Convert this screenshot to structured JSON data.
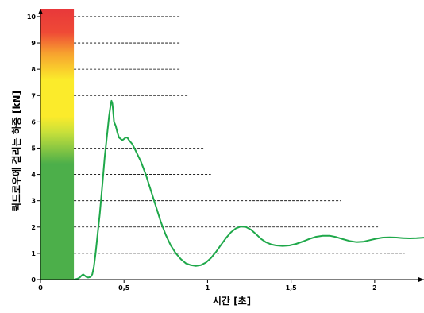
{
  "chart_data": {
    "type": "line",
    "title": "",
    "xlabel": "시간 [초]",
    "ylabel": "퀵드로우에 걸리는 하중 [kN]",
    "xlim": [
      0,
      2.3
    ],
    "ylim": [
      0,
      10.3
    ],
    "x_ticks": [
      {
        "value": 0,
        "label": "0"
      },
      {
        "value": 0.5,
        "label": "0,5"
      },
      {
        "value": 1,
        "label": "1"
      },
      {
        "value": 1.5,
        "label": "1,5"
      },
      {
        "value": 2,
        "label": "2"
      }
    ],
    "y_ticks": [
      {
        "value": 0,
        "label": "0"
      },
      {
        "value": 1,
        "label": "1"
      },
      {
        "value": 2,
        "label": "2"
      },
      {
        "value": 3,
        "label": "3"
      },
      {
        "value": 4,
        "label": "4"
      },
      {
        "value": 5,
        "label": "5"
      },
      {
        "value": 6,
        "label": "6"
      },
      {
        "value": 7,
        "label": "7"
      },
      {
        "value": 8,
        "label": "8"
      },
      {
        "value": 9,
        "label": "9"
      },
      {
        "value": 10,
        "label": "10"
      }
    ],
    "reference_lines": [
      {
        "value": 1,
        "x_end": 2.18
      },
      {
        "value": 2,
        "x_end": 2.02
      },
      {
        "value": 3,
        "x_end": 1.8
      },
      {
        "value": 4,
        "x_end": 1.02
      },
      {
        "value": 5,
        "x_end": 0.98
      },
      {
        "value": 6,
        "x_end": 0.91
      },
      {
        "value": 7,
        "x_end": 0.88
      },
      {
        "value": 8,
        "x_end": 0.84
      },
      {
        "value": 9,
        "x_end": 0.84
      },
      {
        "value": 10,
        "x_end": 0.84
      }
    ],
    "color_scale": {
      "x_range": [
        0,
        0.2
      ],
      "y_range": [
        0,
        10.3
      ],
      "stops": [
        {
          "value": 0,
          "color": "#4caf4a"
        },
        {
          "value": 4.4,
          "color": "#4caf4a"
        },
        {
          "value": 5.6,
          "color": "#c8e03a"
        },
        {
          "value": 6.2,
          "color": "#fbeb2b"
        },
        {
          "value": 7.6,
          "color": "#fbeb2b"
        },
        {
          "value": 8.6,
          "color": "#f7a22f"
        },
        {
          "value": 9.4,
          "color": "#ef4a36"
        },
        {
          "value": 10.3,
          "color": "#e8383a"
        }
      ]
    },
    "series": [
      {
        "color": "#1fa84a",
        "points": [
          [
            0.2,
            0.0
          ],
          [
            0.22,
            0.03
          ],
          [
            0.235,
            0.08
          ],
          [
            0.245,
            0.15
          ],
          [
            0.255,
            0.2
          ],
          [
            0.265,
            0.15
          ],
          [
            0.275,
            0.1
          ],
          [
            0.285,
            0.08
          ],
          [
            0.3,
            0.1
          ],
          [
            0.31,
            0.2
          ],
          [
            0.32,
            0.5
          ],
          [
            0.33,
            1.0
          ],
          [
            0.34,
            1.6
          ],
          [
            0.355,
            2.5
          ],
          [
            0.37,
            3.6
          ],
          [
            0.385,
            4.7
          ],
          [
            0.4,
            5.6
          ],
          [
            0.41,
            6.2
          ],
          [
            0.42,
            6.65
          ],
          [
            0.425,
            6.8
          ],
          [
            0.43,
            6.7
          ],
          [
            0.435,
            6.4
          ],
          [
            0.44,
            6.0
          ],
          [
            0.45,
            5.85
          ],
          [
            0.46,
            5.6
          ],
          [
            0.47,
            5.4
          ],
          [
            0.48,
            5.35
          ],
          [
            0.49,
            5.3
          ],
          [
            0.5,
            5.35
          ],
          [
            0.51,
            5.4
          ],
          [
            0.52,
            5.4
          ],
          [
            0.53,
            5.3
          ],
          [
            0.55,
            5.15
          ],
          [
            0.57,
            4.9
          ],
          [
            0.6,
            4.5
          ],
          [
            0.63,
            4.0
          ],
          [
            0.66,
            3.4
          ],
          [
            0.69,
            2.8
          ],
          [
            0.72,
            2.2
          ],
          [
            0.75,
            1.7
          ],
          [
            0.78,
            1.3
          ],
          [
            0.81,
            1.0
          ],
          [
            0.84,
            0.78
          ],
          [
            0.87,
            0.62
          ],
          [
            0.9,
            0.55
          ],
          [
            0.93,
            0.52
          ],
          [
            0.96,
            0.55
          ],
          [
            0.99,
            0.65
          ],
          [
            1.02,
            0.82
          ],
          [
            1.05,
            1.05
          ],
          [
            1.08,
            1.32
          ],
          [
            1.11,
            1.58
          ],
          [
            1.14,
            1.8
          ],
          [
            1.17,
            1.95
          ],
          [
            1.2,
            2.02
          ],
          [
            1.23,
            2.0
          ],
          [
            1.26,
            1.9
          ],
          [
            1.29,
            1.73
          ],
          [
            1.32,
            1.55
          ],
          [
            1.35,
            1.42
          ],
          [
            1.38,
            1.34
          ],
          [
            1.41,
            1.3
          ],
          [
            1.45,
            1.28
          ],
          [
            1.49,
            1.3
          ],
          [
            1.53,
            1.36
          ],
          [
            1.57,
            1.45
          ],
          [
            1.61,
            1.55
          ],
          [
            1.65,
            1.63
          ],
          [
            1.69,
            1.67
          ],
          [
            1.73,
            1.67
          ],
          [
            1.77,
            1.62
          ],
          [
            1.81,
            1.54
          ],
          [
            1.85,
            1.47
          ],
          [
            1.89,
            1.43
          ],
          [
            1.93,
            1.44
          ],
          [
            1.97,
            1.5
          ],
          [
            2.01,
            1.56
          ],
          [
            2.05,
            1.6
          ],
          [
            2.09,
            1.61
          ],
          [
            2.13,
            1.6
          ],
          [
            2.17,
            1.58
          ],
          [
            2.21,
            1.57
          ],
          [
            2.25,
            1.58
          ],
          [
            2.3,
            1.6
          ]
        ]
      }
    ]
  }
}
